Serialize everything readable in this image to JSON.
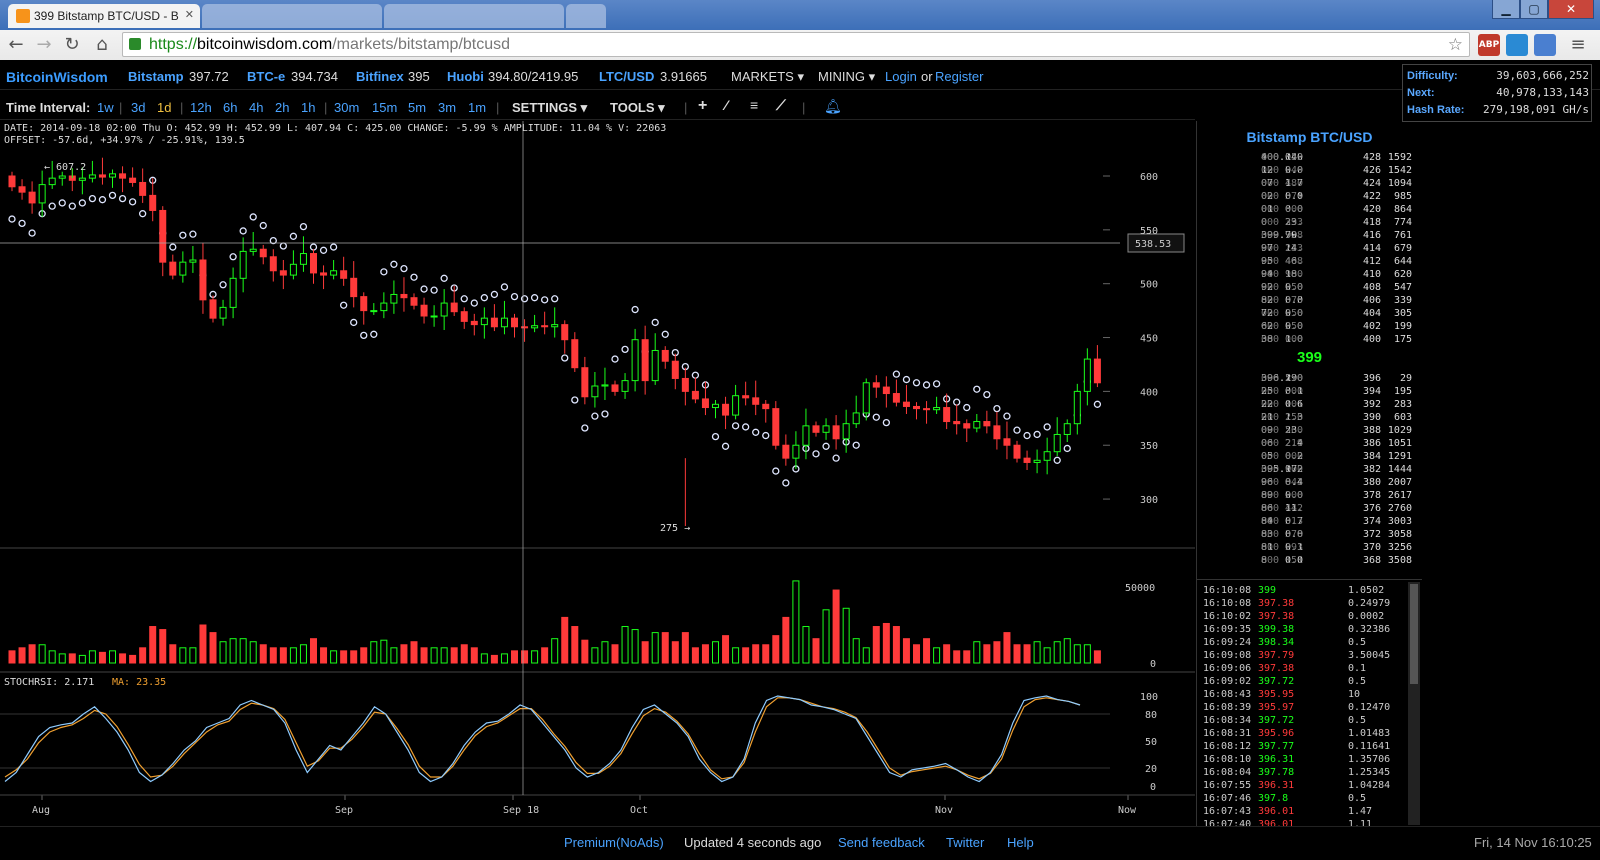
{
  "browser": {
    "active_tab": "399 Bitstamp BTC/USD - B",
    "url_scheme": "https://",
    "url_host": "bitcoinwisdom.com",
    "url_path": "/markets/bitstamp/btcusd",
    "ext_abp": "ABP"
  },
  "site": {
    "logo": "BitcoinWisdom",
    "exchanges": [
      {
        "name": "Bitstamp",
        "price": "397.72"
      },
      {
        "name": "BTC-e",
        "price": "394.734"
      },
      {
        "name": "Bitfinex",
        "price": "395"
      },
      {
        "name": "Huobi",
        "price": "394.80/2419.95"
      },
      {
        "name": "LTC/USD",
        "price": "3.91665"
      }
    ],
    "markets": "MARKETS",
    "mining": "MINING",
    "login": "Login",
    "or": "or",
    "register": "Register"
  },
  "stats": {
    "difficulty_label": "Difficulty:",
    "difficulty": "39,603,666,252",
    "next_label": "Next:",
    "next": "40,978,133,143",
    "hashrate_label": "Hash Rate:",
    "hashrate": "279,198,091 GH/s"
  },
  "toolbar": {
    "label": "Time Interval:",
    "intervals": [
      "1w",
      "3d",
      "1d",
      "12h",
      "6h",
      "4h",
      "2h",
      "1h",
      "30m",
      "15m",
      "5m",
      "3m",
      "1m"
    ],
    "selected": "1d",
    "settings": "SETTINGS",
    "tools": "TOOLS"
  },
  "chart_info": {
    "line1": "DATE: 2014-09-18 02:00 Thu    O: 452.99    H: 452.99    L: 407.94    C: 425.00    CHANGE:  -5.99 %    AMPLITUDE: 11.04 %    V: 22063",
    "line2": "OFFSET: -57.6d, +34.97% / -25.91%, 139.5",
    "high_label": "← 607.2",
    "low_label": "275 →",
    "crosshair_price": "538.53",
    "stoch_label": "STOCHRSI: 2.171",
    "ma_label": "MA: 23.35"
  },
  "chart_data": {
    "type": "candlestick",
    "price_ticks": [
      600,
      550,
      500,
      450,
      400,
      350,
      300
    ],
    "volume_ticks": [
      50000,
      0
    ],
    "stoch_ticks": [
      100,
      80,
      50,
      20,
      0
    ],
    "x_labels": [
      "Aug",
      "Sep",
      "Sep 18",
      "Oct",
      "Nov",
      "Now"
    ],
    "high": 607.2,
    "low": 275,
    "candles_close": [
      590,
      585,
      575,
      592,
      598,
      600,
      596,
      598,
      601,
      599,
      602,
      598,
      594,
      582,
      568,
      520,
      508,
      520,
      522,
      485,
      468,
      478,
      505,
      530,
      532,
      525,
      512,
      508,
      518,
      528,
      510,
      508,
      512,
      505,
      488,
      475,
      475,
      482,
      490,
      487,
      480,
      470,
      470,
      482,
      474,
      465,
      462,
      468,
      460,
      468,
      460,
      459,
      461,
      460,
      462,
      448,
      422,
      395,
      405,
      406,
      400,
      410,
      448,
      410,
      438,
      428,
      412,
      400,
      393,
      385,
      388,
      378,
      396,
      394,
      388,
      384,
      350,
      338,
      350,
      368,
      362,
      368,
      356,
      370,
      380,
      408,
      404,
      398,
      390,
      386,
      384,
      383,
      385,
      372,
      370,
      366,
      372,
      368,
      356,
      350,
      338,
      334,
      336,
      344,
      360,
      370,
      400,
      430,
      408
    ],
    "volumes_k": [
      8,
      10,
      12,
      12,
      8,
      6,
      6,
      5,
      8,
      7,
      8,
      6,
      5,
      10,
      24,
      22,
      12,
      10,
      10,
      25,
      20,
      14,
      16,
      16,
      14,
      12,
      10,
      10,
      10,
      12,
      16,
      10,
      8,
      8,
      8,
      10,
      14,
      15,
      10,
      12,
      14,
      10,
      10,
      10,
      10,
      12,
      10,
      6,
      5,
      6,
      8,
      8,
      8,
      10,
      16,
      30,
      24,
      15,
      10,
      14,
      12,
      24,
      22,
      14,
      20,
      20,
      14,
      20,
      10,
      12,
      14,
      18,
      10,
      10,
      12,
      12,
      18,
      30,
      54,
      24,
      16,
      35,
      48,
      36,
      16,
      10,
      24,
      26,
      24,
      16,
      12,
      16,
      10,
      12,
      8,
      8,
      14,
      12,
      14,
      20,
      12,
      12,
      14,
      10,
      14,
      16,
      12,
      12,
      8,
      10,
      18,
      40,
      46,
      16
    ],
    "stochrsi": [
      5,
      15,
      35,
      55,
      65,
      68,
      70,
      80,
      88,
      75,
      60,
      40,
      15,
      5,
      12,
      25,
      40,
      50,
      65,
      70,
      75,
      90,
      95,
      90,
      85,
      70,
      40,
      15,
      30,
      45,
      40,
      55,
      70,
      88,
      80,
      60,
      40,
      15,
      5,
      10,
      25,
      45,
      60,
      70,
      72,
      80,
      90,
      85,
      70,
      55,
      40,
      20,
      10,
      15,
      25,
      40,
      65,
      85,
      90,
      80,
      70,
      55,
      30,
      15,
      5,
      10,
      30,
      70,
      95,
      100,
      98,
      96,
      90,
      88,
      85,
      80,
      75,
      55,
      35,
      15,
      10,
      18,
      20,
      22,
      25,
      18,
      10,
      5,
      15,
      35,
      70,
      95,
      98,
      100,
      96,
      94,
      90
    ],
    "stoch_ma": [
      10,
      18,
      30,
      48,
      60,
      65,
      68,
      75,
      84,
      80,
      66,
      46,
      24,
      10,
      12,
      22,
      36,
      48,
      60,
      68,
      72,
      85,
      92,
      90,
      86,
      74,
      48,
      22,
      28,
      42,
      42,
      52,
      66,
      82,
      80,
      64,
      46,
      22,
      10,
      10,
      22,
      40,
      56,
      66,
      70,
      78,
      86,
      86,
      74,
      58,
      44,
      26,
      14,
      14,
      22,
      36,
      58,
      78,
      86,
      82,
      72,
      58,
      36,
      18,
      8,
      10,
      26,
      60,
      88,
      98,
      98,
      96,
      92,
      88,
      86,
      82,
      76,
      60,
      40,
      20,
      12,
      16,
      18,
      20,
      22,
      18,
      12,
      8,
      14,
      30,
      62,
      88,
      96,
      98,
      96,
      94,
      90
    ]
  },
  "sidebar": {
    "title": "Bitstamp BTC/USD",
    "asks": [
      {
        "p1": "400.14",
        "p2": "000",
        "a1": "0.0",
        "a2": "552",
        "t": "428",
        "c": "1592"
      },
      {
        "p1": "12",
        "p2": "000",
        "a1": "0.0",
        "a2": "249",
        "t": "426",
        "c": "1542"
      },
      {
        "p1": "07",
        "p2": "000",
        "a1": "1.7",
        "a2": "480",
        "t": "424",
        "c": "1094"
      },
      {
        "p1": "02",
        "p2": "000",
        "a1": "0.0",
        "a2": "374",
        "t": "422",
        "c": "985"
      },
      {
        "p1": "01",
        "p2": "000",
        "a1": "0.0",
        "a2": "600",
        "t": "420",
        "c": "864"
      },
      {
        "p1": "0",
        "p2": "000",
        "a1": "23.",
        "a2": "393",
        "t": "418",
        "c": "774"
      },
      {
        "p1": "399.99",
        "p2": "000",
        "a1": "70.",
        "a2": "928",
        "t": "416",
        "c": "761"
      },
      {
        "p1": "97",
        "p2": "000",
        "a1": "14.",
        "a2": "233",
        "t": "414",
        "c": "679"
      },
      {
        "p1": "95",
        "p2": "000",
        "a1": "46.",
        "a2": "408",
        "t": "412",
        "c": "644"
      },
      {
        "p1": "94",
        "p2": "000",
        "a1": "18.",
        "a2": "900",
        "t": "410",
        "c": "620"
      },
      {
        "p1": "92",
        "p2": "000",
        "a1": "0.0",
        "a2": "250",
        "t": "408",
        "c": "547"
      },
      {
        "p1": "82",
        "p2": "000",
        "a1": "0.0",
        "a2": "375",
        "t": "406",
        "c": "339"
      },
      {
        "p1": "72",
        "p2": "000",
        "a1": "0.0",
        "a2": "250",
        "t": "404",
        "c": "305"
      },
      {
        "p1": "62",
        "p2": "000",
        "a1": "0.0",
        "a2": "250",
        "t": "402",
        "c": "199"
      },
      {
        "p1": "38",
        "p2": "000",
        "a1": "1.0",
        "a2": "000",
        "t": "400",
        "c": "175"
      }
    ],
    "mid_price": "399",
    "bids": [
      {
        "p1": "396.29",
        "p2": "000",
        "a1": "1.0",
        "a2": "550",
        "t": "396",
        "c": "29"
      },
      {
        "p1": "25",
        "p2": "000",
        "a1": "0.1",
        "a2": "500",
        "t": "394",
        "c": "195"
      },
      {
        "p1": "22",
        "p2": "000",
        "a1": "0.6",
        "a2": "101",
        "t": "392",
        "c": "283"
      },
      {
        "p1": "21",
        "p2": "000",
        "a1": "1.3",
        "a2": "250",
        "t": "390",
        "c": "603"
      },
      {
        "p1": "09",
        "p2": "000",
        "a1": "23.",
        "a2": "560",
        "t": "388",
        "c": "1029"
      },
      {
        "p1": "06",
        "p2": "000",
        "a1": "2.4",
        "a2": "219",
        "t": "386",
        "c": "1051"
      },
      {
        "p1": "05",
        "p2": "000",
        "a1": "0.2",
        "a2": "000",
        "t": "384",
        "c": "1291"
      },
      {
        "p1": "395.97",
        "p2": "000",
        "a1": "1.2",
        "a2": "600",
        "t": "382",
        "c": "1444"
      },
      {
        "p1": "96",
        "p2": "000",
        "a1": "0.4",
        "a2": "843",
        "t": "380",
        "c": "2007"
      },
      {
        "p1": "89",
        "p2": "000",
        "a1": "0.0",
        "a2": "200",
        "t": "378",
        "c": "2617"
      },
      {
        "p1": "86",
        "p2": "000",
        "a1": "11.",
        "a2": "442",
        "t": "376",
        "c": "2760"
      },
      {
        "p1": "84",
        "p2": "000",
        "a1": "0.7",
        "a2": "313",
        "t": "374",
        "c": "3003"
      },
      {
        "p1": "83",
        "p2": "000",
        "a1": "0.0",
        "a2": "378",
        "t": "372",
        "c": "3058"
      },
      {
        "p1": "81",
        "p2": "000",
        "a1": "0.1",
        "a2": "293",
        "t": "370",
        "c": "3256"
      },
      {
        "p1": "8",
        "p2": "000",
        "a1": "0.0",
        "a2": "151",
        "t": "368",
        "c": "3508"
      }
    ],
    "trades": [
      {
        "time": "16:10:08",
        "price": "399",
        "dir": "up",
        "amt": "1.0502"
      },
      {
        "time": "16:10:08",
        "price": "397.38",
        "dir": "dn",
        "amt": "0.24979"
      },
      {
        "time": "16:10:02",
        "price": "397.38",
        "dir": "dn",
        "amt": "0.0002"
      },
      {
        "time": "16:09:35",
        "price": "399.38",
        "dir": "up",
        "amt": "0.32386"
      },
      {
        "time": "16:09:24",
        "price": "398.34",
        "dir": "up",
        "amt": "0.5"
      },
      {
        "time": "16:09:08",
        "price": "397.79",
        "dir": "dn",
        "amt": "3.50045"
      },
      {
        "time": "16:09:06",
        "price": "397.38",
        "dir": "dn",
        "amt": "0.1"
      },
      {
        "time": "16:09:02",
        "price": "397.72",
        "dir": "up",
        "amt": "0.5"
      },
      {
        "time": "16:08:43",
        "price": "395.95",
        "dir": "dn",
        "amt": "10"
      },
      {
        "time": "16:08:39",
        "price": "395.97",
        "dir": "dn",
        "amt": "0.12470"
      },
      {
        "time": "16:08:34",
        "price": "397.72",
        "dir": "up",
        "amt": "0.5"
      },
      {
        "time": "16:08:31",
        "price": "395.96",
        "dir": "dn",
        "amt": "1.01483"
      },
      {
        "time": "16:08:12",
        "price": "397.77",
        "dir": "up",
        "amt": "0.11641"
      },
      {
        "time": "16:08:10",
        "price": "396.31",
        "dir": "up",
        "amt": "1.35706"
      },
      {
        "time": "16:08:04",
        "price": "397.78",
        "dir": "up",
        "amt": "1.25345"
      },
      {
        "time": "16:07:55",
        "price": "396.31",
        "dir": "dn",
        "amt": "1.04284"
      },
      {
        "time": "16:07:46",
        "price": "397.8",
        "dir": "up",
        "amt": "0.5"
      },
      {
        "time": "16:07:43",
        "price": "396.01",
        "dir": "dn",
        "amt": "1.47"
      },
      {
        "time": "16:07:40",
        "price": "396.01",
        "dir": "dn",
        "amt": "1.11"
      }
    ]
  },
  "footer": {
    "premium": "Premium(NoAds)",
    "updated": "Updated 4 seconds ago",
    "feedback": "Send feedback",
    "twitter": "Twitter",
    "help": "Help",
    "clock": "Fri, 14 Nov 16:10:25"
  },
  "colors": {
    "up": "#1aff1a",
    "down": "#ff3a3a",
    "accent": "#4aa3ff",
    "stoch": "#8ecbff",
    "ma": "#f0a030"
  }
}
